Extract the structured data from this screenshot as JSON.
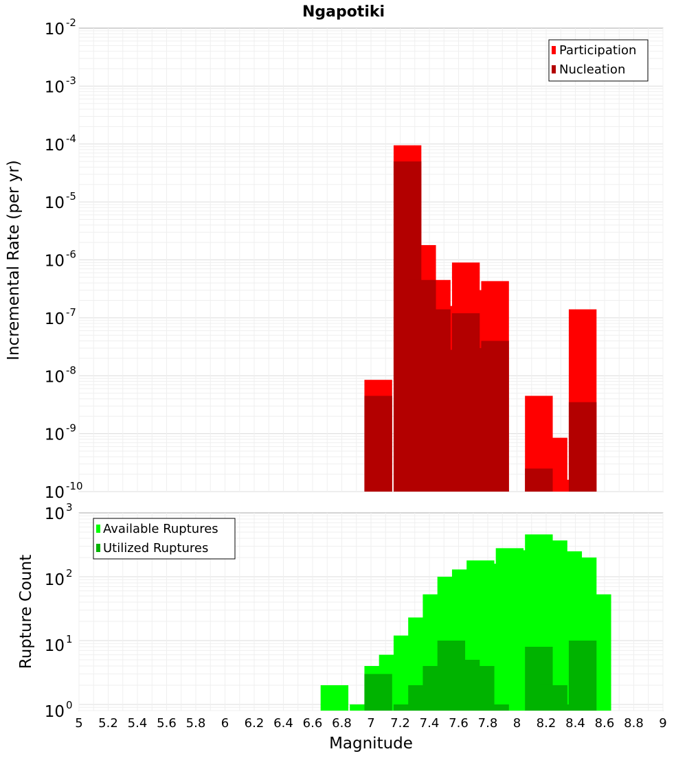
{
  "chart_data": [
    {
      "type": "bar",
      "title": "Ngapotiki",
      "ylabel": "Incremental Rate (per yr)",
      "y_scale": "log",
      "ylim": [
        1e-10,
        0.01
      ],
      "xlim": [
        5,
        9
      ],
      "grid": true,
      "legend_position": "top-right",
      "series": [
        {
          "name": "Participation",
          "color": "#ff0000",
          "x": [
            7.05,
            7.25,
            7.35,
            7.45,
            7.55,
            7.65,
            7.75,
            7.85,
            8.15,
            8.25,
            8.35,
            8.45
          ],
          "values": [
            8.5e-09,
            9.5e-05,
            1.8e-06,
            4.5e-07,
            1.6e-07,
            9e-07,
            3e-07,
            4.3e-07,
            4.5e-09,
            8.5e-10,
            1.6e-10,
            1.4e-07
          ]
        },
        {
          "name": "Nucleation",
          "color": "#b30000",
          "x": [
            7.05,
            7.25,
            7.35,
            7.45,
            7.55,
            7.65,
            7.75,
            7.85,
            8.15,
            8.45
          ],
          "values": [
            4.5e-09,
            5e-05,
            4.5e-07,
            1.4e-07,
            2.8e-08,
            1.2e-07,
            3e-08,
            4e-08,
            2.5e-10,
            3.5e-09
          ]
        }
      ]
    },
    {
      "type": "bar",
      "xlabel": "Magnitude",
      "ylabel": "Rupture Count",
      "y_scale": "log",
      "ylim": [
        0.8,
        1000
      ],
      "xlim": [
        5,
        9
      ],
      "grid": true,
      "legend_position": "top-left",
      "series": [
        {
          "name": "Available Ruptures",
          "color": "#00ff00",
          "x": [
            6.75,
            6.95,
            7.05,
            7.15,
            7.25,
            7.35,
            7.45,
            7.55,
            7.65,
            7.75,
            7.85,
            7.95,
            8.05,
            8.15,
            8.25,
            8.35,
            8.45,
            8.55
          ],
          "values": [
            2,
            1,
            4,
            6,
            12,
            23,
            53,
            100,
            130,
            180,
            160,
            280,
            260,
            460,
            370,
            250,
            200,
            53
          ]
        },
        {
          "name": "Utilized Ruptures",
          "color": "#00b300",
          "x": [
            7.05,
            7.25,
            7.35,
            7.45,
            7.55,
            7.65,
            7.75,
            7.85,
            8.15,
            8.25,
            8.35,
            8.45
          ],
          "values": [
            3,
            1,
            2,
            4,
            10,
            5,
            4,
            1,
            8,
            2,
            1,
            10
          ]
        }
      ]
    }
  ],
  "x_ticks": [
    "5",
    "5.2",
    "5.4",
    "5.6",
    "5.8",
    "6",
    "6.2",
    "6.4",
    "6.6",
    "6.8",
    "7",
    "7.2",
    "7.4",
    "7.6",
    "7.8",
    "8",
    "8.2",
    "8.4",
    "8.6",
    "8.8",
    "9"
  ],
  "top_y_ticks": [
    {
      "base": "10",
      "exp": "-2"
    },
    {
      "base": "10",
      "exp": "-3"
    },
    {
      "base": "10",
      "exp": "-4"
    },
    {
      "base": "10",
      "exp": "-5"
    },
    {
      "base": "10",
      "exp": "-6"
    },
    {
      "base": "10",
      "exp": "-7"
    },
    {
      "base": "10",
      "exp": "-8"
    },
    {
      "base": "10",
      "exp": "-9"
    },
    {
      "base": "10",
      "exp": "-10"
    }
  ],
  "bottom_y_ticks": [
    {
      "base": "10",
      "exp": "3"
    },
    {
      "base": "10",
      "exp": "2"
    },
    {
      "base": "10",
      "exp": "1"
    },
    {
      "base": "10",
      "exp": "0"
    }
  ]
}
